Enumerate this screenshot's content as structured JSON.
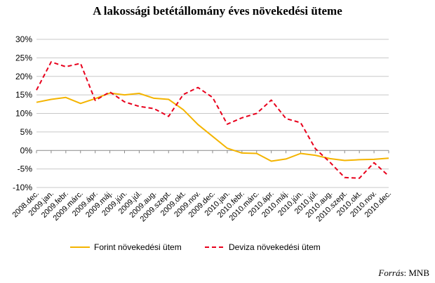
{
  "chart_data": {
    "type": "line",
    "title": "A lakossági betétállomány éves növekedési üteme",
    "categories": [
      "2008.dec.",
      "2009.jan.",
      "2009.febr.",
      "2009.márc.",
      "2009.ápr.",
      "2009.máj.",
      "2009.jún.",
      "2009.júl.",
      "2009.aug.",
      "2009.szept.",
      "2009.okt.",
      "2009.nov.",
      "2009.dec.",
      "2010.jan.",
      "2010.febr.",
      "2010.márc.",
      "2010.ápr.",
      "2010.máj.",
      "2010.jún.",
      "2010.júl.",
      "2010.aug.",
      "2010.szept.",
      "2010.okt.",
      "2010.nov.",
      "2010.dec."
    ],
    "series": [
      {
        "name": "Forint növekedési ütem",
        "color": "#f4b400",
        "style": "solid",
        "values": [
          13.0,
          13.8,
          14.3,
          12.7,
          14.0,
          15.5,
          15.0,
          15.4,
          14.1,
          13.8,
          11.0,
          7.0,
          3.8,
          0.6,
          -0.7,
          -0.8,
          -2.9,
          -2.3,
          -0.8,
          -1.3,
          -2.2,
          -2.7,
          -2.5,
          -2.4,
          -2.1
        ]
      },
      {
        "name": "Deviza növekedési ütem",
        "color": "#e8001c",
        "style": "dashed",
        "values": [
          16.3,
          23.9,
          22.6,
          23.5,
          13.5,
          15.8,
          13.1,
          11.9,
          11.3,
          9.2,
          15.1,
          17.0,
          14.3,
          7.1,
          8.8,
          10.0,
          13.6,
          8.6,
          7.5,
          0.5,
          -3.2,
          -7.3,
          -7.5,
          -3.3,
          -6.9
        ]
      }
    ],
    "yticks": [
      "30%",
      "25%",
      "20%",
      "15%",
      "10%",
      "5%",
      "0%",
      "-5%",
      "-10%"
    ],
    "ylim": [
      -10,
      30
    ],
    "ystep": 5,
    "grid": true,
    "legend_position": "bottom"
  },
  "source": {
    "label": "Forrás",
    "value": ": MNB"
  }
}
